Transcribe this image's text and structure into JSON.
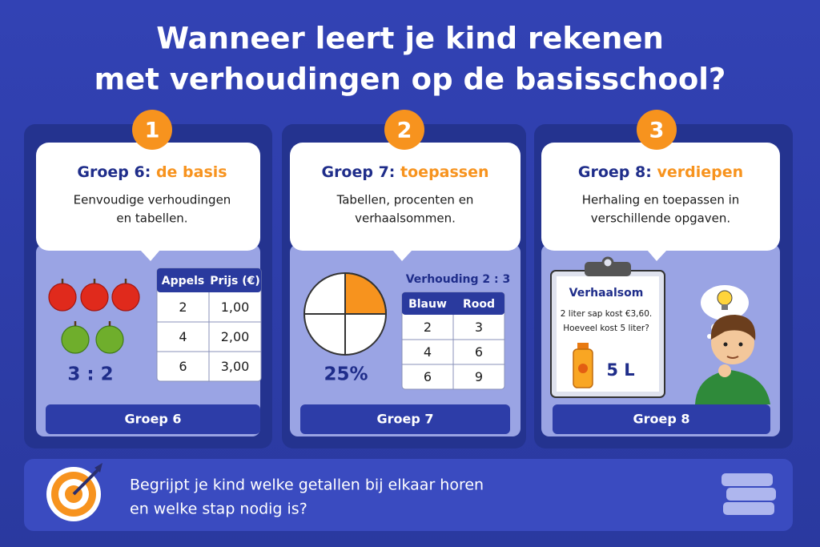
{
  "title": [
    "Wanneer leert je kind rekenen",
    "met verhoudingen op de basisschool?"
  ],
  "cards": [
    {
      "number": "1",
      "heading": "Groep 6:",
      "highlight": "de basis",
      "text": [
        "Eenvoudige verhoudingen",
        "en tabellen."
      ],
      "table": {
        "headers": [
          "Appels",
          "Prijs (€)"
        ],
        "rows": [
          [
            "2",
            "1,00"
          ],
          [
            "4",
            "2,00"
          ],
          [
            "6",
            "3,00"
          ]
        ]
      },
      "ratio": "3 : 2",
      "footer": "Groep 6"
    },
    {
      "number": "2",
      "heading": "Groep 7:",
      "highlight": "toepassen",
      "text": [
        "Tabellen, procenten en",
        "verhaalsommen."
      ],
      "caption": "Verhouding 2 : 3",
      "table": {
        "headers": [
          "Blauw",
          "Rood"
        ],
        "rows": [
          [
            "2",
            "3"
          ],
          [
            "4",
            "6"
          ],
          [
            "6",
            "9"
          ]
        ]
      },
      "percent": "25%",
      "footer": "Groep 7"
    },
    {
      "number": "3",
      "heading": "Groep 8:",
      "highlight": "verdiepen",
      "text": [
        "Herhaling en toepassen in",
        "verschillende opgaven."
      ],
      "story": {
        "title": "Verhaalsom",
        "lines": [
          "2 liter sap kost €3,60.",
          "Hoeveel kost 5 liter?"
        ],
        "answer": "5 L"
      },
      "footer": "Groep 8"
    }
  ],
  "question": [
    "Begrijpt je kind welke getallen bij elkaar horen",
    "en welke stap nodig is?"
  ]
}
